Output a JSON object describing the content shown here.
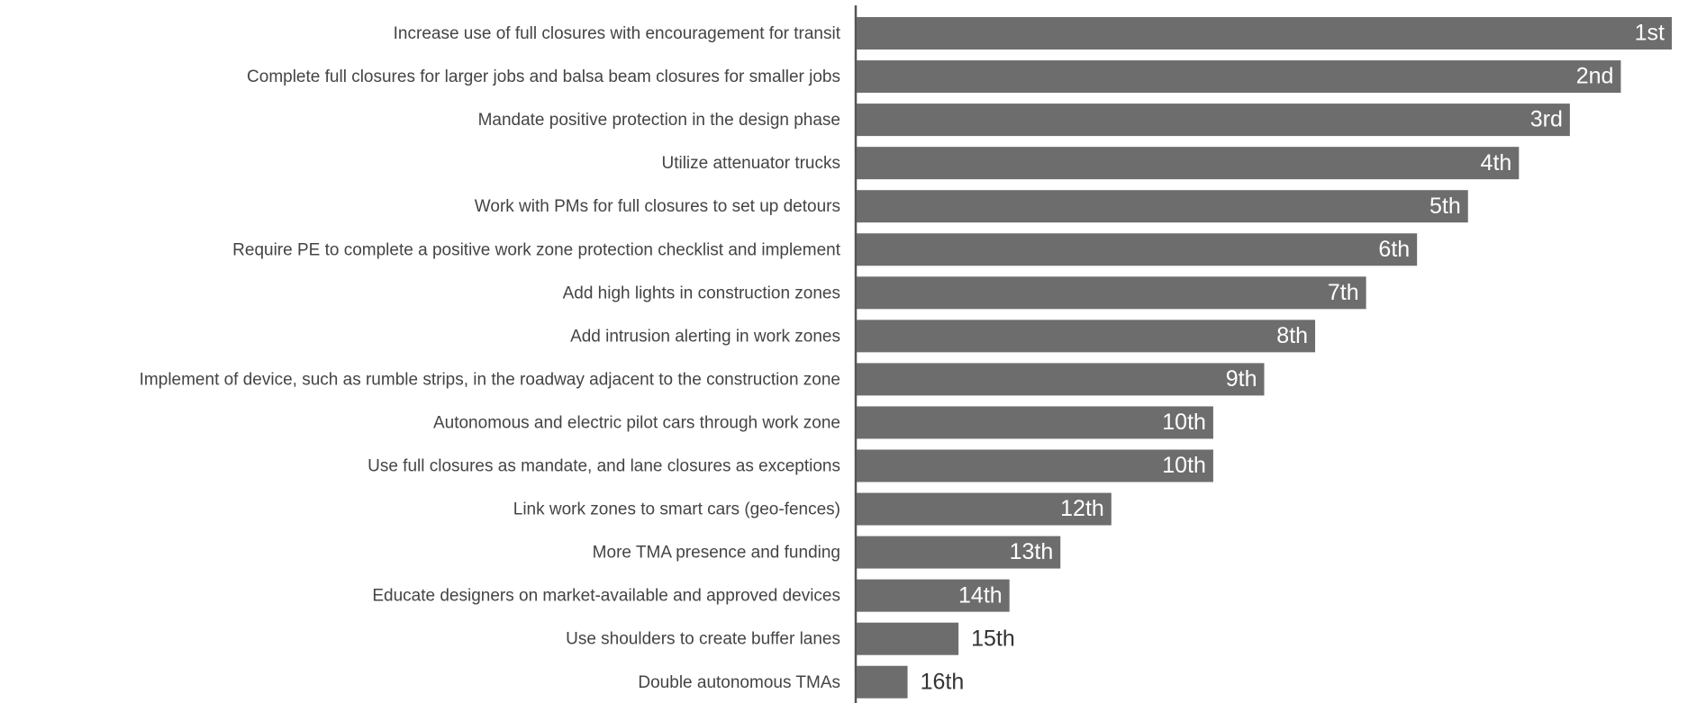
{
  "chart_data": {
    "type": "hbar",
    "categories": [
      "Increase use of full closures with encouragement for transit",
      "Complete full closures for larger jobs and balsa beam closures for smaller jobs",
      "Mandate positive protection in the design phase",
      "Utilize attenuator trucks",
      "Work with PMs for full closures to set up detours",
      "Require PE to complete a positive work zone protection checklist and implement",
      "Add high lights in construction zones",
      "Add intrusion alerting in work zones",
      "Implement of device, such as rumble strips, in the roadway adjacent to the construction zone",
      "Autonomous and electric pilot cars through work zone",
      "Use full closures as mandate, and lane closures as exceptions",
      "Link work zones to smart cars (geo-fences)",
      "More TMA presence and funding",
      "Educate designers on market-available and approved devices",
      "Use shoulders to create buffer lanes",
      "Double autonomous TMAs"
    ],
    "values": [
      1,
      2,
      3,
      4,
      5,
      6,
      7,
      8,
      9,
      10,
      10,
      12,
      13,
      14,
      15,
      16
    ],
    "value_labels": [
      "1st",
      "2nd",
      "3rd",
      "4th",
      "5th",
      "6th",
      "7th",
      "8th",
      "9th",
      "10th",
      "10th",
      "12th",
      "13th",
      "14th",
      "15th",
      "16th"
    ],
    "color": "#6d6d6d",
    "xlim": [
      17,
      1
    ]
  }
}
